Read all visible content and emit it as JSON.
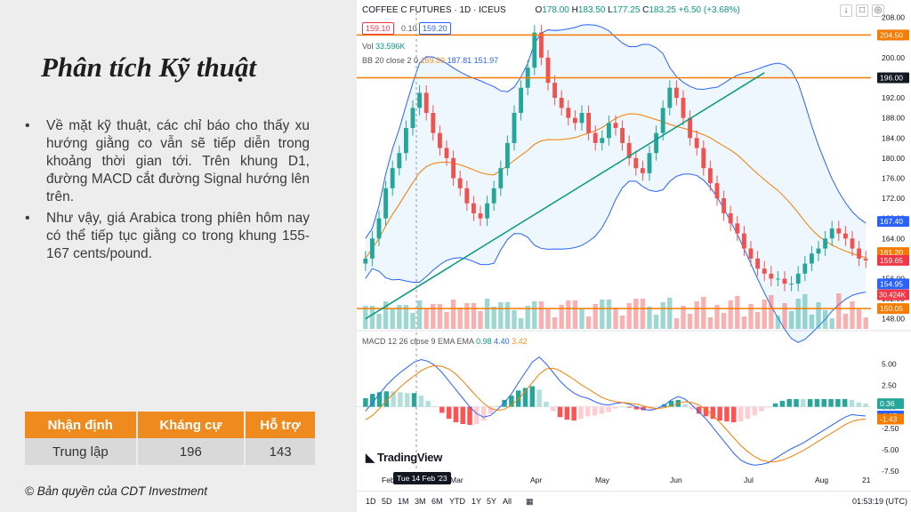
{
  "slide": {
    "title": "Phân tích Kỹ thuật",
    "bullets": [
      "Về mặt kỹ thuật, các chỉ báo cho thấy xu hướng giằng co vẫn sẽ tiếp diễn trong khoảng thời gian tới. Trên khung D1, đường MACD cắt đường Signal hướng lên trên.",
      "Như vậy, giá Arabica trong phiên hôm nay có thể tiếp tục giằng co trong khung 155-167 cents/pound."
    ],
    "table": {
      "headers": [
        "Nhận định",
        "Kháng cự",
        "Hỗ trợ"
      ],
      "row": [
        "Trung lập",
        "196",
        "143"
      ]
    },
    "copyright": "© Bản quyền của CDT Investment"
  },
  "chart_header": {
    "symbol": "COFFEE C FUTURES · 1D · ICEUS",
    "o_label": "O",
    "o": "178.00",
    "h_label": "H",
    "h": "183.50",
    "l_label": "L",
    "l": "177.25",
    "c_label": "C",
    "c": "183.25",
    "change": "+6.50 (+3.68%)",
    "bid": "159.10",
    "spread": "0.10",
    "ask": "159.20",
    "vol_label": "Vol",
    "vol_value": "33.596K",
    "bb_label": "BB 20 close 2 0",
    "bb_basis": "169.89",
    "bb_upper": "187.81",
    "bb_lower": "151.97",
    "macd_label": "MACD 12 26 close 9 EMA EMA",
    "macd_hist": "0.98",
    "macd_line": "4.40",
    "macd_signal": "3.42"
  },
  "chart_data": [
    {
      "type": "candlestick",
      "title": "COFFEE C FUTURES · 1D · ICEUS",
      "x_labels": [
        "Feb",
        "Mar",
        "Apr",
        "May",
        "Jun",
        "Jul",
        "Aug",
        "21"
      ],
      "y_ticks": [
        "208.00",
        "204.00",
        "200.00",
        "196.00",
        "192.00",
        "188.00",
        "184.00",
        "180.00",
        "176.00",
        "172.00",
        "168.00",
        "164.00",
        "160.00",
        "156.00",
        "152.00",
        "148.00"
      ],
      "ylim": [
        146,
        209
      ],
      "close_series": [
        160,
        164,
        168,
        174,
        178,
        181,
        186,
        190,
        193,
        189,
        185,
        182,
        180,
        176,
        174,
        171,
        169,
        168,
        171,
        174,
        178,
        183,
        189,
        194,
        198,
        205,
        200,
        195,
        192,
        190,
        188,
        187,
        189,
        185,
        183,
        184,
        187,
        186,
        183,
        180,
        178,
        177,
        181,
        185,
        190,
        194,
        192,
        188,
        184,
        182,
        178,
        175,
        172,
        169,
        167,
        165,
        162,
        160,
        158,
        157,
        156,
        156,
        155,
        155,
        157,
        159,
        161,
        162,
        164,
        166,
        165,
        164,
        162,
        160,
        159.65
      ],
      "price_labels": [
        {
          "value": 204.5,
          "text": "204.50",
          "color": "#f57c00"
        },
        {
          "value": 196.0,
          "text": "196.00",
          "color": "#131722"
        },
        {
          "value": 167.4,
          "text": "167.40",
          "color": "#2962ff"
        },
        {
          "value": 161.2,
          "text": "161.20",
          "color": "#f57c00"
        },
        {
          "value": 159.65,
          "text": "159.65",
          "color": "#f23645"
        },
        {
          "value": 154.95,
          "text": "154.95",
          "color": "#2962ff"
        },
        {
          "value": 150.05,
          "text": "150.05",
          "color": "#f57c00"
        }
      ],
      "volume_label": "30.424K",
      "horizontal_levels": [
        204.5,
        196.0,
        150.05
      ],
      "trendline": {
        "from": [
          0,
          148
        ],
        "to": [
          59,
          197
        ]
      },
      "bollinger": {
        "basis": 169.89,
        "upper": 187.81,
        "lower": 151.97
      }
    },
    {
      "type": "macd",
      "y_ticks": [
        "5.00",
        "2.50",
        "0.00",
        "-2.50",
        "-5.00",
        "-7.50"
      ],
      "ylim": [
        -8,
        7
      ],
      "macd": [
        -0.5,
        0.5,
        1.5,
        2.5,
        3.3,
        4.0,
        4.6,
        5.2,
        5.5,
        5.3,
        4.8,
        4.0,
        3.0,
        2.0,
        1.0,
        0.0,
        -0.8,
        -1.2,
        -1.0,
        -0.3,
        0.5,
        1.5,
        2.8,
        4.0,
        5.2,
        5.8,
        5.0,
        4.0,
        3.0,
        2.2,
        1.6,
        1.2,
        1.0,
        0.6,
        0.3,
        0.2,
        0.4,
        0.5,
        0.3,
        0.0,
        -0.3,
        -0.4,
        -0.2,
        0.2,
        0.8,
        1.2,
        0.9,
        0.2,
        -0.6,
        -1.4,
        -2.4,
        -3.4,
        -4.4,
        -5.4,
        -6.2,
        -6.6,
        -6.8,
        -6.7,
        -6.5,
        -6.0,
        -5.5,
        -5.0,
        -4.6,
        -4.2,
        -3.7,
        -3.2,
        -2.7,
        -2.2,
        -1.7,
        -1.2,
        -0.9,
        -1.0,
        -1.07
      ],
      "signal": [
        -1.5,
        -1.0,
        -0.2,
        0.7,
        1.5,
        2.3,
        3.0,
        3.6,
        4.2,
        4.6,
        4.8,
        4.7,
        4.4,
        3.8,
        3.0,
        2.1,
        1.2,
        0.4,
        -0.2,
        -0.4,
        -0.3,
        0.2,
        0.9,
        1.8,
        2.8,
        3.8,
        4.4,
        4.5,
        4.2,
        3.7,
        3.2,
        2.6,
        2.1,
        1.6,
        1.1,
        0.8,
        0.6,
        0.5,
        0.4,
        0.3,
        0.1,
        -0.1,
        -0.2,
        -0.1,
        0.1,
        0.4,
        0.6,
        0.5,
        0.2,
        -0.3,
        -1.0,
        -1.8,
        -2.7,
        -3.6,
        -4.5,
        -5.2,
        -5.8,
        -6.2,
        -6.4,
        -6.4,
        -6.2,
        -5.9,
        -5.5,
        -5.1,
        -4.6,
        -4.1,
        -3.6,
        -3.1,
        -2.6,
        -2.1,
        -1.7,
        -1.5,
        -1.43
      ],
      "labels": [
        {
          "value": 0.36,
          "text": "0.36",
          "color": "#26a69a"
        },
        {
          "value": -1.07,
          "text": "-1.07",
          "color": "#2962ff"
        },
        {
          "value": -1.43,
          "text": "-1.43",
          "color": "#f57c00"
        }
      ]
    }
  ],
  "chart_footer": {
    "logo": "TradingView",
    "date_tag": "Tue 14 Feb '23",
    "timeframes": [
      "1D",
      "5D",
      "1M",
      "3M",
      "6M",
      "YTD",
      "1Y",
      "5Y",
      "All"
    ],
    "clock": "01:53:19 (UTC)"
  },
  "colors": {
    "up": "#26a69a",
    "down": "#ef5350",
    "accent": "#ef8a1e"
  }
}
